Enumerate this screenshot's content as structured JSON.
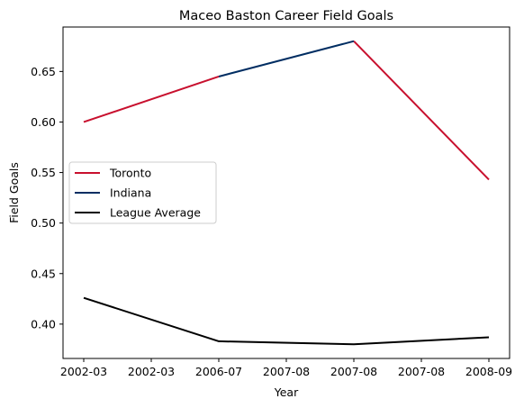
{
  "chart_data": {
    "type": "line",
    "title": "Maceo Baston Career Field Goals",
    "xlabel": "Year",
    "ylabel": "Field Goals",
    "x_tick_labels": [
      "2002-03",
      "2002-03",
      "2006-07",
      "2007-08",
      "2007-08",
      "2007-08",
      "2008-09"
    ],
    "ylim": [
      0.366,
      0.694
    ],
    "y_ticks": [
      0.4,
      0.45,
      0.5,
      0.55,
      0.6,
      0.65
    ],
    "y_tick_labels": [
      "0.40",
      "0.45",
      "0.50",
      "0.55",
      "0.60",
      "0.65"
    ],
    "grid": false,
    "legend_position": "center-left",
    "series": [
      {
        "name": "Toronto",
        "color": "#c8102e",
        "segments": [
          [
            {
              "x": 0,
              "y": 0.6
            },
            {
              "x": 2,
              "y": 0.645
            }
          ],
          [
            {
              "x": 4,
              "y": 0.68
            },
            {
              "x": 6,
              "y": 0.543
            }
          ]
        ]
      },
      {
        "name": "Indiana",
        "color": "#002d62",
        "segments": [
          [
            {
              "x": 2,
              "y": 0.645
            },
            {
              "x": 4,
              "y": 0.68
            }
          ]
        ]
      },
      {
        "name": "League Average",
        "color": "#000000",
        "segments": [
          [
            {
              "x": 0,
              "y": 0.426
            },
            {
              "x": 2,
              "y": 0.383
            },
            {
              "x": 4,
              "y": 0.38
            },
            {
              "x": 6,
              "y": 0.387
            }
          ]
        ]
      }
    ]
  }
}
